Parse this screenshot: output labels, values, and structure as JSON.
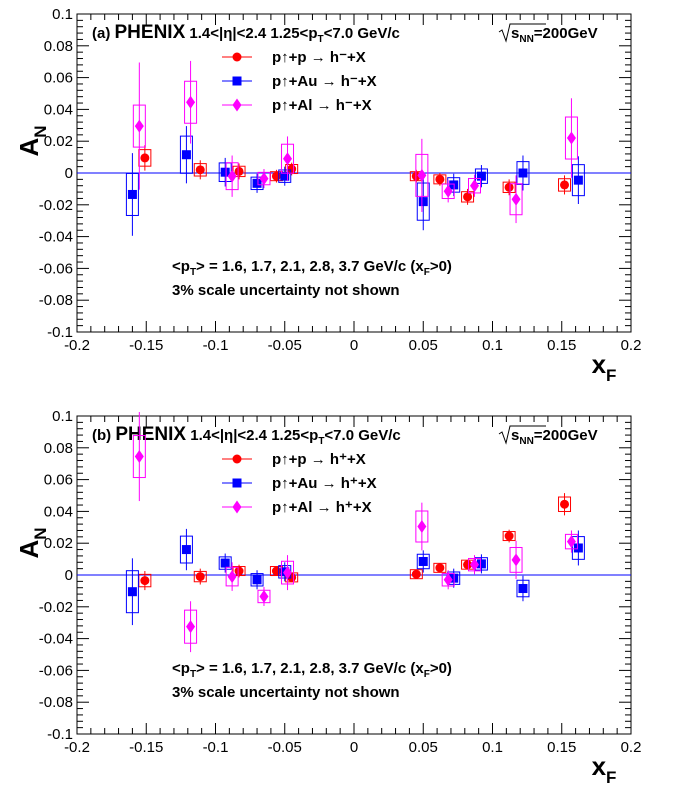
{
  "chart_data": [
    {
      "type": "scatter",
      "panel_label": "(a)",
      "experiment": "PHENIX",
      "cuts": {
        "eta": "1.4<|η|<2.4",
        "pt": "1.25<p",
        "pt_sub": "T",
        "pt_tail": "<7.0 GeV/c",
        "sqrt": "s",
        "sqrt_sub": "NN",
        "energy": "=200GeV"
      },
      "xlabel": "x",
      "xlabel_sub": "F",
      "ylabel": "A",
      "ylabel_sub": "N",
      "xlim": [
        -0.2,
        0.2
      ],
      "ylim": [
        -0.1,
        0.1
      ],
      "x_ticks": [
        "-0.2",
        "-0.15",
        "-0.1",
        "-0.05",
        "0",
        "0.05",
        "0.1",
        "0.15",
        "0.2"
      ],
      "y_ticks": [
        "-0.1",
        "-0.08",
        "-0.06",
        "-0.04",
        "-0.02",
        "0",
        "0.02",
        "0.04",
        "0.06",
        "0.08",
        "0.1"
      ],
      "legend_placement": "top-center",
      "annotation_line1": {
        "a": "<p",
        "a_sub": "T",
        "b": "> = 1.6, 1.7, 2.1, 2.8, 3.7 GeV/c (x",
        "b_sub": "F",
        "c": ">0)"
      },
      "annotation_line2": "3% scale uncertainty not shown",
      "series": [
        {
          "name": "p↑+p → h⁻+X",
          "color": "#ff0000",
          "marker": "circle",
          "x": [
            -0.151,
            -0.111,
            -0.083,
            -0.056,
            -0.045,
            0.045,
            0.062,
            0.082,
            0.112,
            0.152
          ],
          "y": [
            0.0095,
            0.002,
            0.001,
            -0.002,
            0.0025,
            -0.002,
            -0.004,
            -0.015,
            -0.009,
            -0.0075
          ],
          "yerr": [
            0.008,
            0.006,
            0.005,
            0.004,
            0.004,
            0.004,
            0.004,
            0.005,
            0.005,
            0.006
          ]
        },
        {
          "name": "p↑+Au → h⁻+X",
          "color": "#0000ff",
          "marker": "square",
          "x": [
            -0.16,
            -0.121,
            -0.093,
            -0.07,
            -0.05,
            0.05,
            0.072,
            0.092,
            0.122,
            0.162
          ],
          "y": [
            -0.0135,
            0.0115,
            0.0005,
            -0.0065,
            -0.002,
            -0.018,
            -0.0075,
            -0.002,
            0.0,
            -0.0045
          ],
          "yerr": [
            0.026,
            0.018,
            0.009,
            0.006,
            0.006,
            0.018,
            0.007,
            0.007,
            0.011,
            0.015
          ]
        },
        {
          "name": "p↑+Al → h⁻+X",
          "color": "#ff00ff",
          "marker": "diamond",
          "x": [
            -0.155,
            -0.118,
            -0.088,
            -0.065,
            -0.048,
            0.049,
            0.068,
            0.087,
            0.117,
            0.157
          ],
          "y": [
            0.0295,
            0.0445,
            -0.002,
            -0.0035,
            0.009,
            -0.0015,
            -0.0115,
            -0.008,
            -0.0165,
            0.022
          ],
          "yerr": [
            0.04,
            0.026,
            0.013,
            0.006,
            0.014,
            0.023,
            0.007,
            0.007,
            0.015,
            0.025
          ]
        }
      ]
    },
    {
      "type": "scatter",
      "panel_label": "(b)",
      "experiment": "PHENIX",
      "cuts": {
        "eta": "1.4<|η|<2.4",
        "pt": "1.25<p",
        "pt_sub": "T",
        "pt_tail": "<7.0 GeV/c",
        "sqrt": "s",
        "sqrt_sub": "NN",
        "energy": "=200GeV"
      },
      "xlabel": "x",
      "xlabel_sub": "F",
      "ylabel": "A",
      "ylabel_sub": "N",
      "xlim": [
        -0.2,
        0.2
      ],
      "ylim": [
        -0.1,
        0.1
      ],
      "x_ticks": [
        "-0.2",
        "-0.15",
        "-0.1",
        "-0.05",
        "0",
        "0.05",
        "0.1",
        "0.15",
        "0.2"
      ],
      "y_ticks": [
        "-0.1",
        "-0.08",
        "-0.06",
        "-0.04",
        "-0.02",
        "0",
        "0.02",
        "0.04",
        "0.06",
        "0.08",
        "0.1"
      ],
      "legend_placement": "top-center",
      "annotation_line1": {
        "a": "<p",
        "a_sub": "T",
        "b": "> = 1.6, 1.7, 2.1, 2.8, 3.7 GeV/c (x",
        "b_sub": "F",
        "c": ">0)"
      },
      "annotation_line2": "3% scale uncertainty not shown",
      "series": [
        {
          "name": "p↑+p → h⁺+X",
          "color": "#ff0000",
          "marker": "circle",
          "x": [
            -0.151,
            -0.111,
            -0.083,
            -0.056,
            -0.045,
            0.045,
            0.062,
            0.082,
            0.112,
            0.152
          ],
          "y": [
            -0.0035,
            -0.001,
            0.0025,
            0.0025,
            -0.0015,
            0.0005,
            0.0045,
            0.0065,
            0.0245,
            0.0445
          ],
          "yerr": [
            0.006,
            0.005,
            0.004,
            0.003,
            0.003,
            0.003,
            0.003,
            0.003,
            0.004,
            0.007
          ]
        },
        {
          "name": "p↑+Au → h⁺+X",
          "color": "#0000ff",
          "marker": "square",
          "x": [
            -0.16,
            -0.121,
            -0.093,
            -0.07,
            -0.05,
            0.05,
            0.072,
            0.092,
            0.122,
            0.162
          ],
          "y": [
            -0.0105,
            0.016,
            0.0075,
            -0.003,
            0.002,
            0.0085,
            -0.002,
            0.007,
            -0.0085,
            0.017
          ],
          "yerr": [
            0.021,
            0.013,
            0.006,
            0.006,
            0.006,
            0.007,
            0.006,
            0.006,
            0.008,
            0.011
          ]
        },
        {
          "name": "p↑+Al → h⁺+X",
          "color": "#ff00ff",
          "marker": "diamond",
          "x": [
            -0.155,
            -0.118,
            -0.088,
            -0.065,
            -0.048,
            0.049,
            0.068,
            0.087,
            0.117,
            0.157
          ],
          "y": [
            0.0745,
            -0.0325,
            -0.001,
            -0.0135,
            0.0015,
            0.0305,
            -0.003,
            0.0065,
            0.0095,
            0.021
          ],
          "yerr": [
            0.028,
            0.016,
            0.009,
            0.006,
            0.011,
            0.015,
            0.006,
            0.006,
            0.012,
            0.007
          ]
        }
      ]
    }
  ]
}
